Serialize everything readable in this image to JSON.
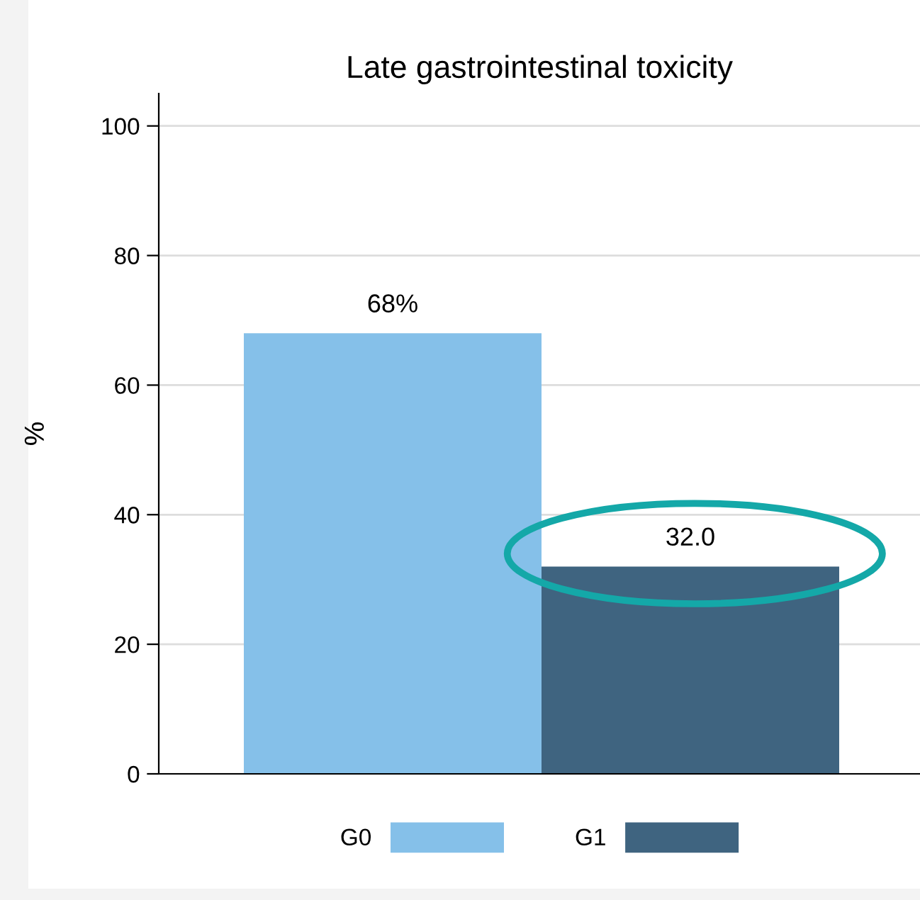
{
  "chart_data": {
    "type": "bar",
    "title": "Late gastrointestinal toxicity",
    "ylabel": "%",
    "categories": [
      null
    ],
    "series": [
      {
        "name": "G0",
        "color": "#85c0e9",
        "values": [
          68
        ],
        "value_labels": [
          "68%"
        ]
      },
      {
        "name": "G1",
        "color": "#3f6480",
        "values": [
          32
        ],
        "value_labels": [
          "32.0"
        ]
      }
    ],
    "ylim": [
      0,
      105
    ],
    "yticks": [
      0,
      20,
      40,
      60,
      80,
      100
    ],
    "grid": "y",
    "legend": "bottom"
  }
}
